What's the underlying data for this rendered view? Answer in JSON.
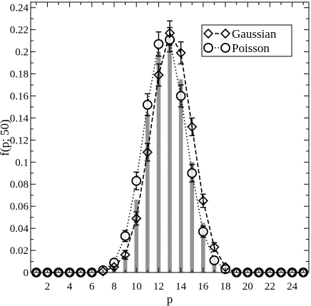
{
  "chart_data": {
    "type": "bar",
    "title": "",
    "xlabel": "p",
    "ylabel": "f(p; 50)",
    "xlim": [
      0.5,
      25.5
    ],
    "ylim": [
      0,
      0.245
    ],
    "x_ticks": [
      2,
      4,
      6,
      8,
      10,
      12,
      14,
      16,
      18,
      20,
      22,
      24
    ],
    "y_ticks": [
      0,
      0.02,
      0.04,
      0.06,
      0.08,
      0.1,
      0.12,
      0.14,
      0.16,
      0.18,
      0.2,
      0.22,
      0.24
    ],
    "y_tick_labels": [
      "0",
      "0.02",
      "0.04",
      "0.06",
      "0.08",
      "0.1",
      "0.12",
      "0.14",
      "0.16",
      "0.18",
      "0.2",
      "0.22",
      "0.24"
    ],
    "grid": false,
    "legend_position": "top-right",
    "histogram": {
      "x": [
        7,
        8,
        9,
        10,
        11,
        12,
        13,
        14,
        15,
        16,
        17,
        18
      ],
      "values": [
        0.002,
        0.005,
        0.015,
        0.066,
        0.144,
        0.2,
        0.215,
        0.175,
        0.1,
        0.045,
        0.015,
        0.003
      ]
    },
    "series": [
      {
        "name": "Gaussian",
        "marker": "diamond",
        "line_style": "dashed",
        "x": [
          1,
          2,
          3,
          4,
          5,
          6,
          7,
          8,
          9,
          10,
          11,
          12,
          13,
          14,
          15,
          16,
          17,
          18,
          19,
          20,
          21,
          22,
          23,
          24,
          25
        ],
        "values": [
          0,
          0,
          0,
          0,
          0,
          0,
          0.001,
          0.005,
          0.016,
          0.049,
          0.109,
          0.179,
          0.217,
          0.199,
          0.132,
          0.065,
          0.023,
          0.005,
          0,
          0,
          0,
          0,
          0,
          0,
          0
        ],
        "errors": [
          0,
          0,
          0,
          0,
          0,
          0,
          0.001,
          0.002,
          0.004,
          0.006,
          0.008,
          0.01,
          0.011,
          0.01,
          0.008,
          0.006,
          0.004,
          0.002,
          0,
          0,
          0,
          0,
          0,
          0,
          0
        ]
      },
      {
        "name": "Poisson",
        "marker": "circle",
        "line_style": "dotted",
        "x": [
          1,
          2,
          3,
          4,
          5,
          6,
          7,
          8,
          9,
          10,
          11,
          12,
          13,
          14,
          15,
          16,
          17,
          18,
          19,
          20,
          21,
          22,
          23,
          24,
          25
        ],
        "values": [
          0,
          0,
          0,
          0,
          0,
          0,
          0.002,
          0.009,
          0.033,
          0.083,
          0.152,
          0.207,
          0.211,
          0.16,
          0.09,
          0.037,
          0.011,
          0.003,
          0,
          0,
          0,
          0,
          0,
          0,
          0
        ],
        "errors": [
          0,
          0,
          0,
          0,
          0,
          0,
          0.001,
          0.003,
          0.005,
          0.008,
          0.01,
          0.011,
          0.011,
          0.01,
          0.008,
          0.005,
          0.003,
          0.001,
          0,
          0,
          0,
          0,
          0,
          0,
          0
        ]
      }
    ]
  }
}
